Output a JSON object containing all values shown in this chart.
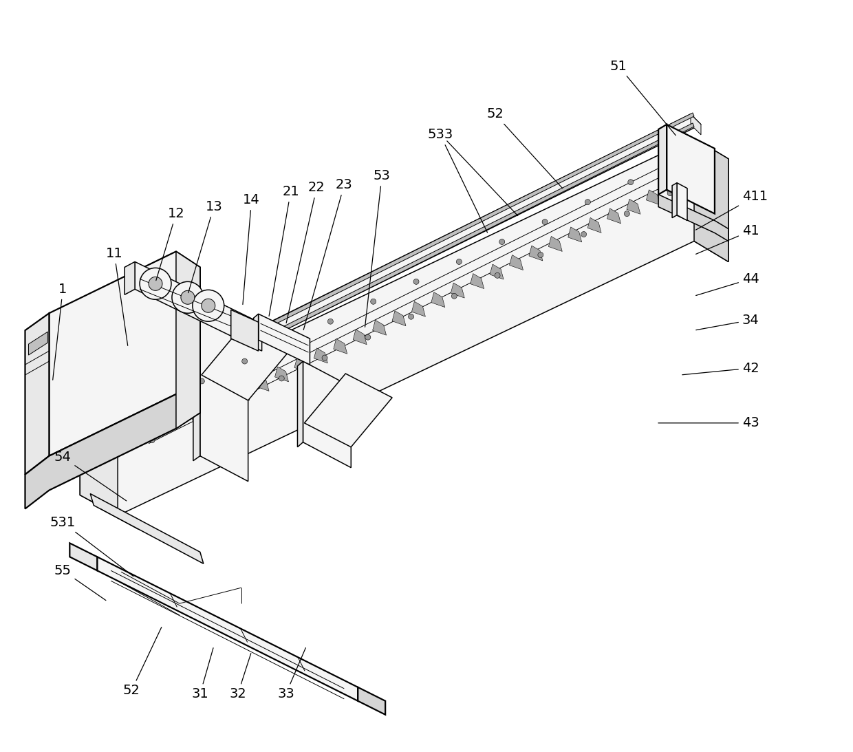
{
  "background_color": "#ffffff",
  "line_color": "#000000",
  "figsize": [
    12.4,
    10.93
  ],
  "dpi": 100,
  "font_size": 14,
  "lw_thin": 0.7,
  "lw_med": 1.1,
  "lw_thick": 1.6,
  "face_light": "#f5f5f5",
  "face_mid": "#e8e8e8",
  "face_dark": "#d5d5d5",
  "face_darker": "#c0c0c0"
}
